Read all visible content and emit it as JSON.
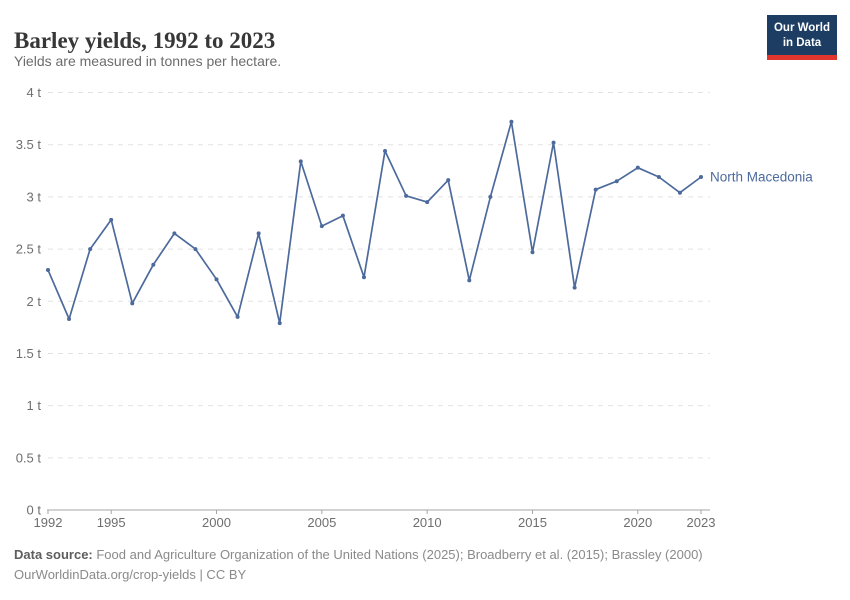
{
  "header": {
    "title": "Barley yields, 1992 to 2023",
    "subtitle": "Yields are measured in tonnes per hectare.",
    "logo_line1": "Our World",
    "logo_line2": "in Data"
  },
  "footer": {
    "source_label": "Data source:",
    "source_text": " Food and Agriculture Organization of the United Nations (2025); Broadberry et al. (2015); Brassley (2000)",
    "attribution": "OurWorldinData.org/crop-yields | CC BY"
  },
  "colors": {
    "series": "#4c6a9c",
    "gridline": "#e2e2e2",
    "axis_line": "#a5a5a5",
    "tick_text": "#6e6e6e",
    "logo_bg": "#1d3d63",
    "logo_accent": "#e0362e"
  },
  "chart_data": {
    "type": "line",
    "title": "Barley yields, 1992 to 2023",
    "subtitle": "Yields are measured in tonnes per hectare.",
    "unit": "t",
    "xlabel": "",
    "ylabel": "tonnes per hectare",
    "ylim": [
      0,
      4
    ],
    "grid": "horizontal-dashed",
    "legend_position": "end-of-line-label",
    "x": [
      1992,
      1993,
      1994,
      1995,
      1996,
      1997,
      1998,
      1999,
      2000,
      2001,
      2002,
      2003,
      2004,
      2005,
      2006,
      2007,
      2008,
      2009,
      2010,
      2011,
      2012,
      2013,
      2014,
      2015,
      2016,
      2017,
      2018,
      2019,
      2020,
      2021,
      2022,
      2023
    ],
    "xticks": [
      1992,
      1995,
      2000,
      2005,
      2010,
      2015,
      2020,
      2023
    ],
    "yticks": [
      0,
      0.5,
      1,
      1.5,
      2,
      2.5,
      3,
      3.5,
      4
    ],
    "ytick_labels": [
      "0 t",
      "0.5 t",
      "1 t",
      "1.5 t",
      "2 t",
      "2.5 t",
      "3 t",
      "3.5 t",
      "4 t"
    ],
    "series": [
      {
        "name": "North Macedonia",
        "values": [
          2.3,
          1.83,
          2.5,
          2.78,
          1.98,
          2.35,
          2.65,
          2.5,
          2.21,
          1.85,
          2.65,
          1.79,
          3.34,
          2.72,
          2.82,
          2.23,
          3.44,
          3.01,
          2.95,
          3.16,
          2.2,
          3.0,
          3.72,
          2.47,
          3.52,
          2.13,
          3.07,
          3.15,
          3.28,
          3.19,
          3.04,
          3.19
        ]
      }
    ]
  }
}
